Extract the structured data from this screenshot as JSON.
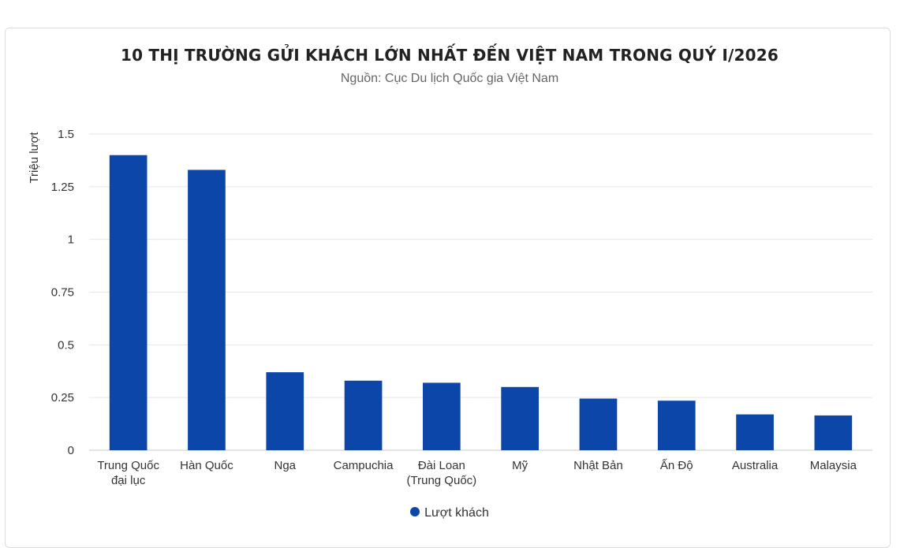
{
  "chart_data": {
    "type": "bar",
    "title": "10 THỊ TRƯỜNG GỬI KHÁCH LỚN NHẤT ĐẾN VIỆT NAM TRONG QUÝ I/2026",
    "subtitle": "Nguồn: Cục Du lịch Quốc gia Việt Nam",
    "xlabel": "",
    "ylabel": "Triệu lượt",
    "categories": [
      [
        "Trung Quốc",
        "đại lục"
      ],
      [
        "Hàn Quốc"
      ],
      [
        "Nga"
      ],
      [
        "Campuchia"
      ],
      [
        "Đài Loan",
        "(Trung Quốc)"
      ],
      [
        "Mỹ"
      ],
      [
        "Nhật Bản"
      ],
      [
        "Ấn Độ"
      ],
      [
        "Australia"
      ],
      [
        "Malaysia"
      ]
    ],
    "series": [
      {
        "name": "Lượt khách",
        "values": [
          1.4,
          1.33,
          0.37,
          0.33,
          0.32,
          0.3,
          0.245,
          0.235,
          0.17,
          0.165
        ]
      }
    ],
    "ylim": [
      0,
      1.5
    ],
    "yticks": [
      0,
      0.25,
      0.5,
      0.75,
      1,
      1.25,
      1.5
    ],
    "ytick_labels": [
      "0",
      "0.25",
      "0.5",
      "0.75",
      "1",
      "1.25",
      "1.5"
    ],
    "grid": true,
    "legend_position": "bottom-center",
    "bar_color": "#0b46a8"
  }
}
